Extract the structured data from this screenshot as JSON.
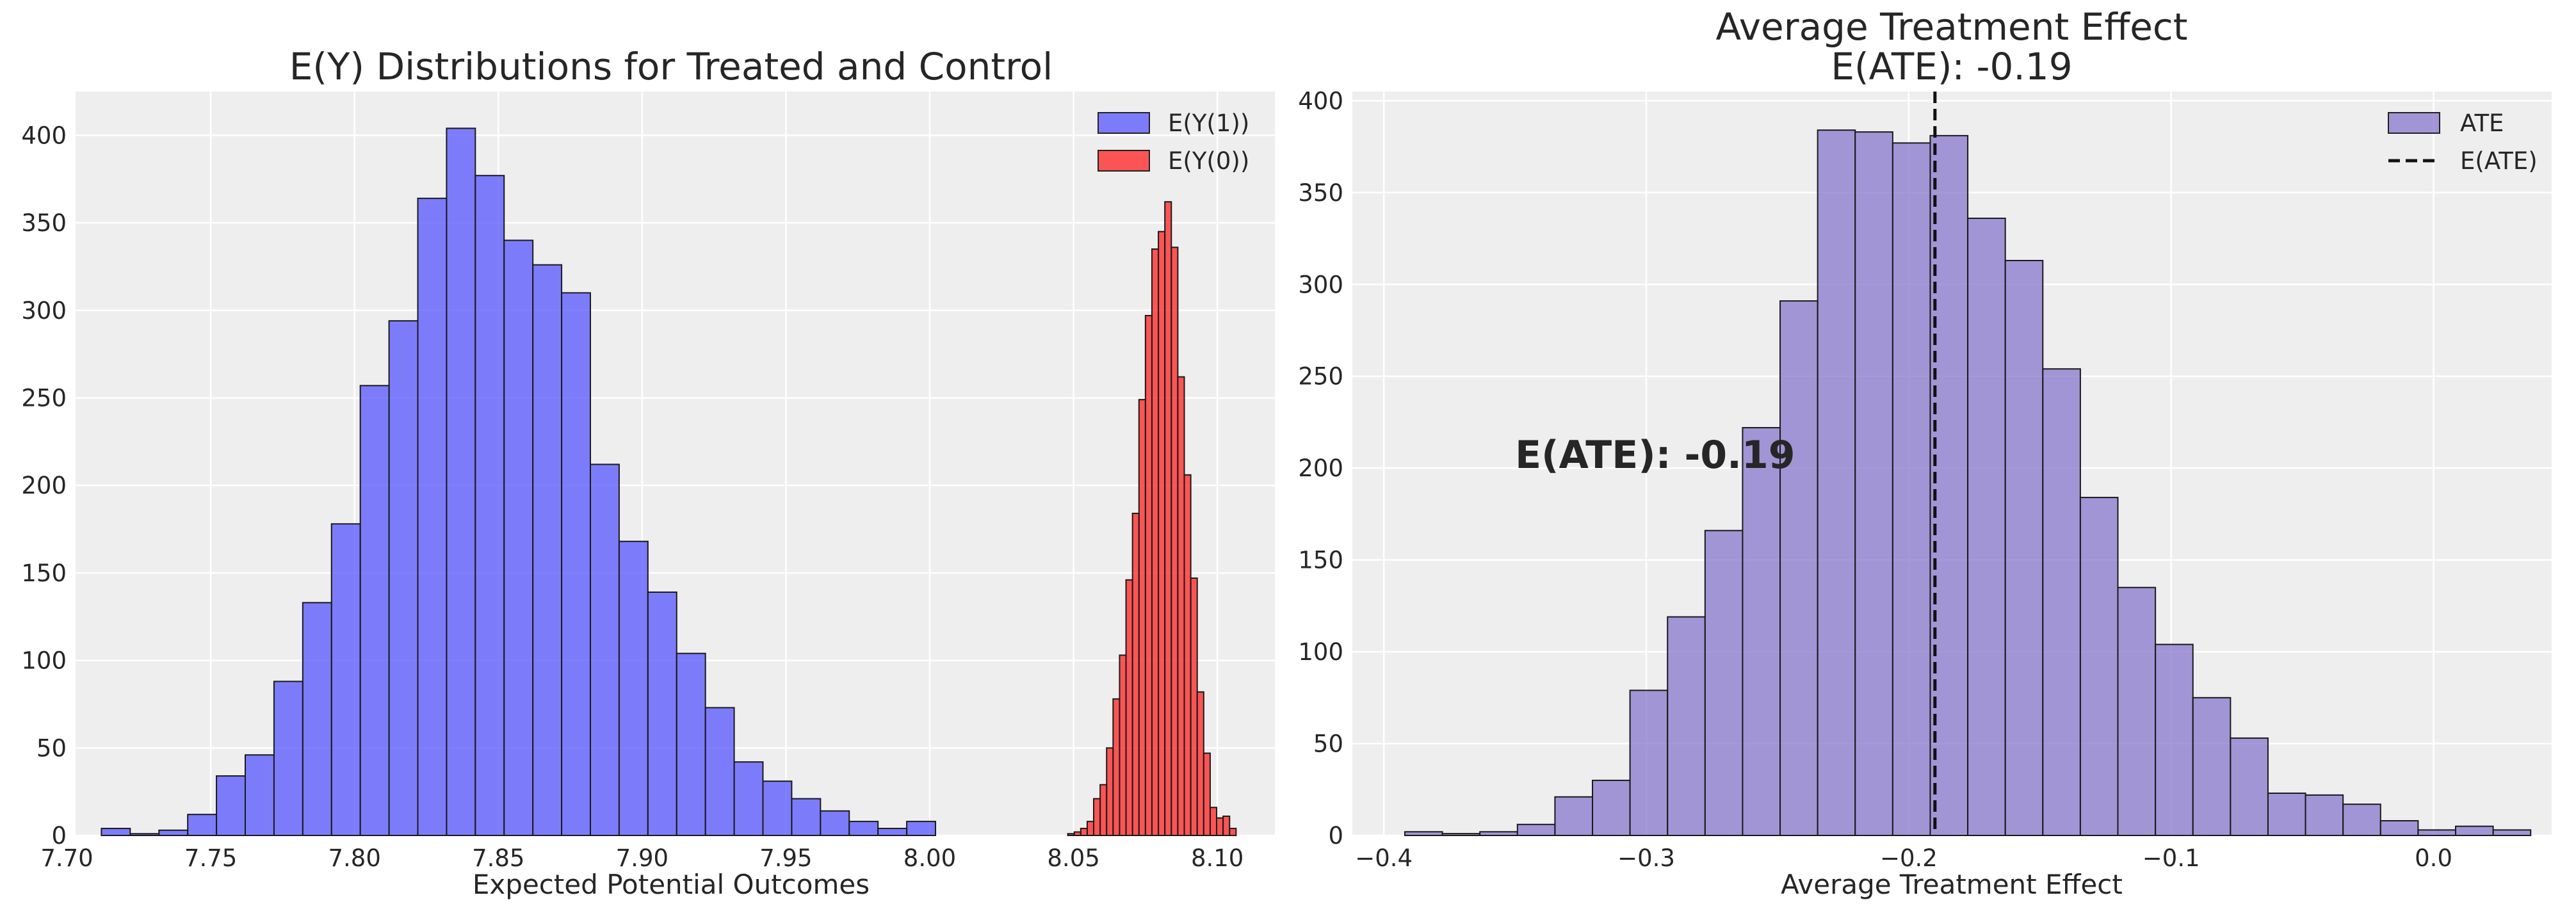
{
  "chart_data": [
    {
      "type": "histogram",
      "title": "E(Y) Distributions for Treated and Control",
      "xlabel": "Expected Potential Outcomes",
      "ylabel": "",
      "xlim": [
        7.703,
        8.12
      ],
      "ylim": [
        0,
        425
      ],
      "x_ticks": [
        "7.70",
        "7.75",
        "7.80",
        "7.85",
        "7.90",
        "7.95",
        "8.00",
        "8.05",
        "8.10"
      ],
      "y_ticks": [
        "0",
        "50",
        "100",
        "150",
        "200",
        "250",
        "300",
        "350",
        "400"
      ],
      "grid": true,
      "legend_position": "top-right",
      "series": [
        {
          "name": "E(Y(1))",
          "color": "#5555ff",
          "bin_start": 7.712,
          "bin_width": 0.01,
          "values": [
            4,
            1,
            3,
            12,
            34,
            46,
            88,
            133,
            178,
            257,
            294,
            364,
            404,
            377,
            340,
            326,
            310,
            212,
            168,
            139,
            104,
            73,
            42,
            31,
            21,
            14,
            8,
            4,
            8
          ]
        },
        {
          "name": "E(Y(0))",
          "color": "#ff2020",
          "bin_start": 8.048,
          "bin_width": 0.00225,
          "values": [
            1,
            2,
            4,
            8,
            21,
            29,
            50,
            78,
            103,
            146,
            184,
            249,
            297,
            335,
            345,
            362,
            336,
            262,
            206,
            147,
            82,
            47,
            16,
            10,
            11,
            4
          ]
        }
      ]
    },
    {
      "type": "histogram",
      "title": "Average Treatment Effect\nE(ATE): -0.19",
      "title_lines": [
        "Average Treatment Effect",
        "E(ATE): -0.19"
      ],
      "xlabel": "Average Treatment Effect",
      "ylabel": "",
      "xlim": [
        -0.412,
        0.045
      ],
      "ylim": [
        0,
        405
      ],
      "x_ticks": [
        "−0.4",
        "−0.3",
        "−0.2",
        "−0.1",
        "0.0"
      ],
      "y_ticks": [
        "0",
        "50",
        "100",
        "150",
        "200",
        "250",
        "300",
        "350",
        "400"
      ],
      "grid": true,
      "legend_position": "top-right",
      "series": [
        {
          "name": "ATE",
          "color": "#8877cc",
          "bin_start": -0.392,
          "bin_width": 0.0143,
          "values": [
            2,
            1,
            2,
            6,
            21,
            30,
            79,
            119,
            166,
            222,
            291,
            384,
            383,
            377,
            381,
            336,
            313,
            254,
            184,
            135,
            104,
            75,
            53,
            23,
            22,
            17,
            8,
            3,
            5,
            3
          ]
        }
      ],
      "vline": {
        "name": "E(ATE)",
        "x": -0.19,
        "style": "dashed",
        "color": "#000000"
      },
      "annotation": {
        "text": "E(ATE): -0.19",
        "x": -0.35,
        "y": 200
      }
    }
  ]
}
